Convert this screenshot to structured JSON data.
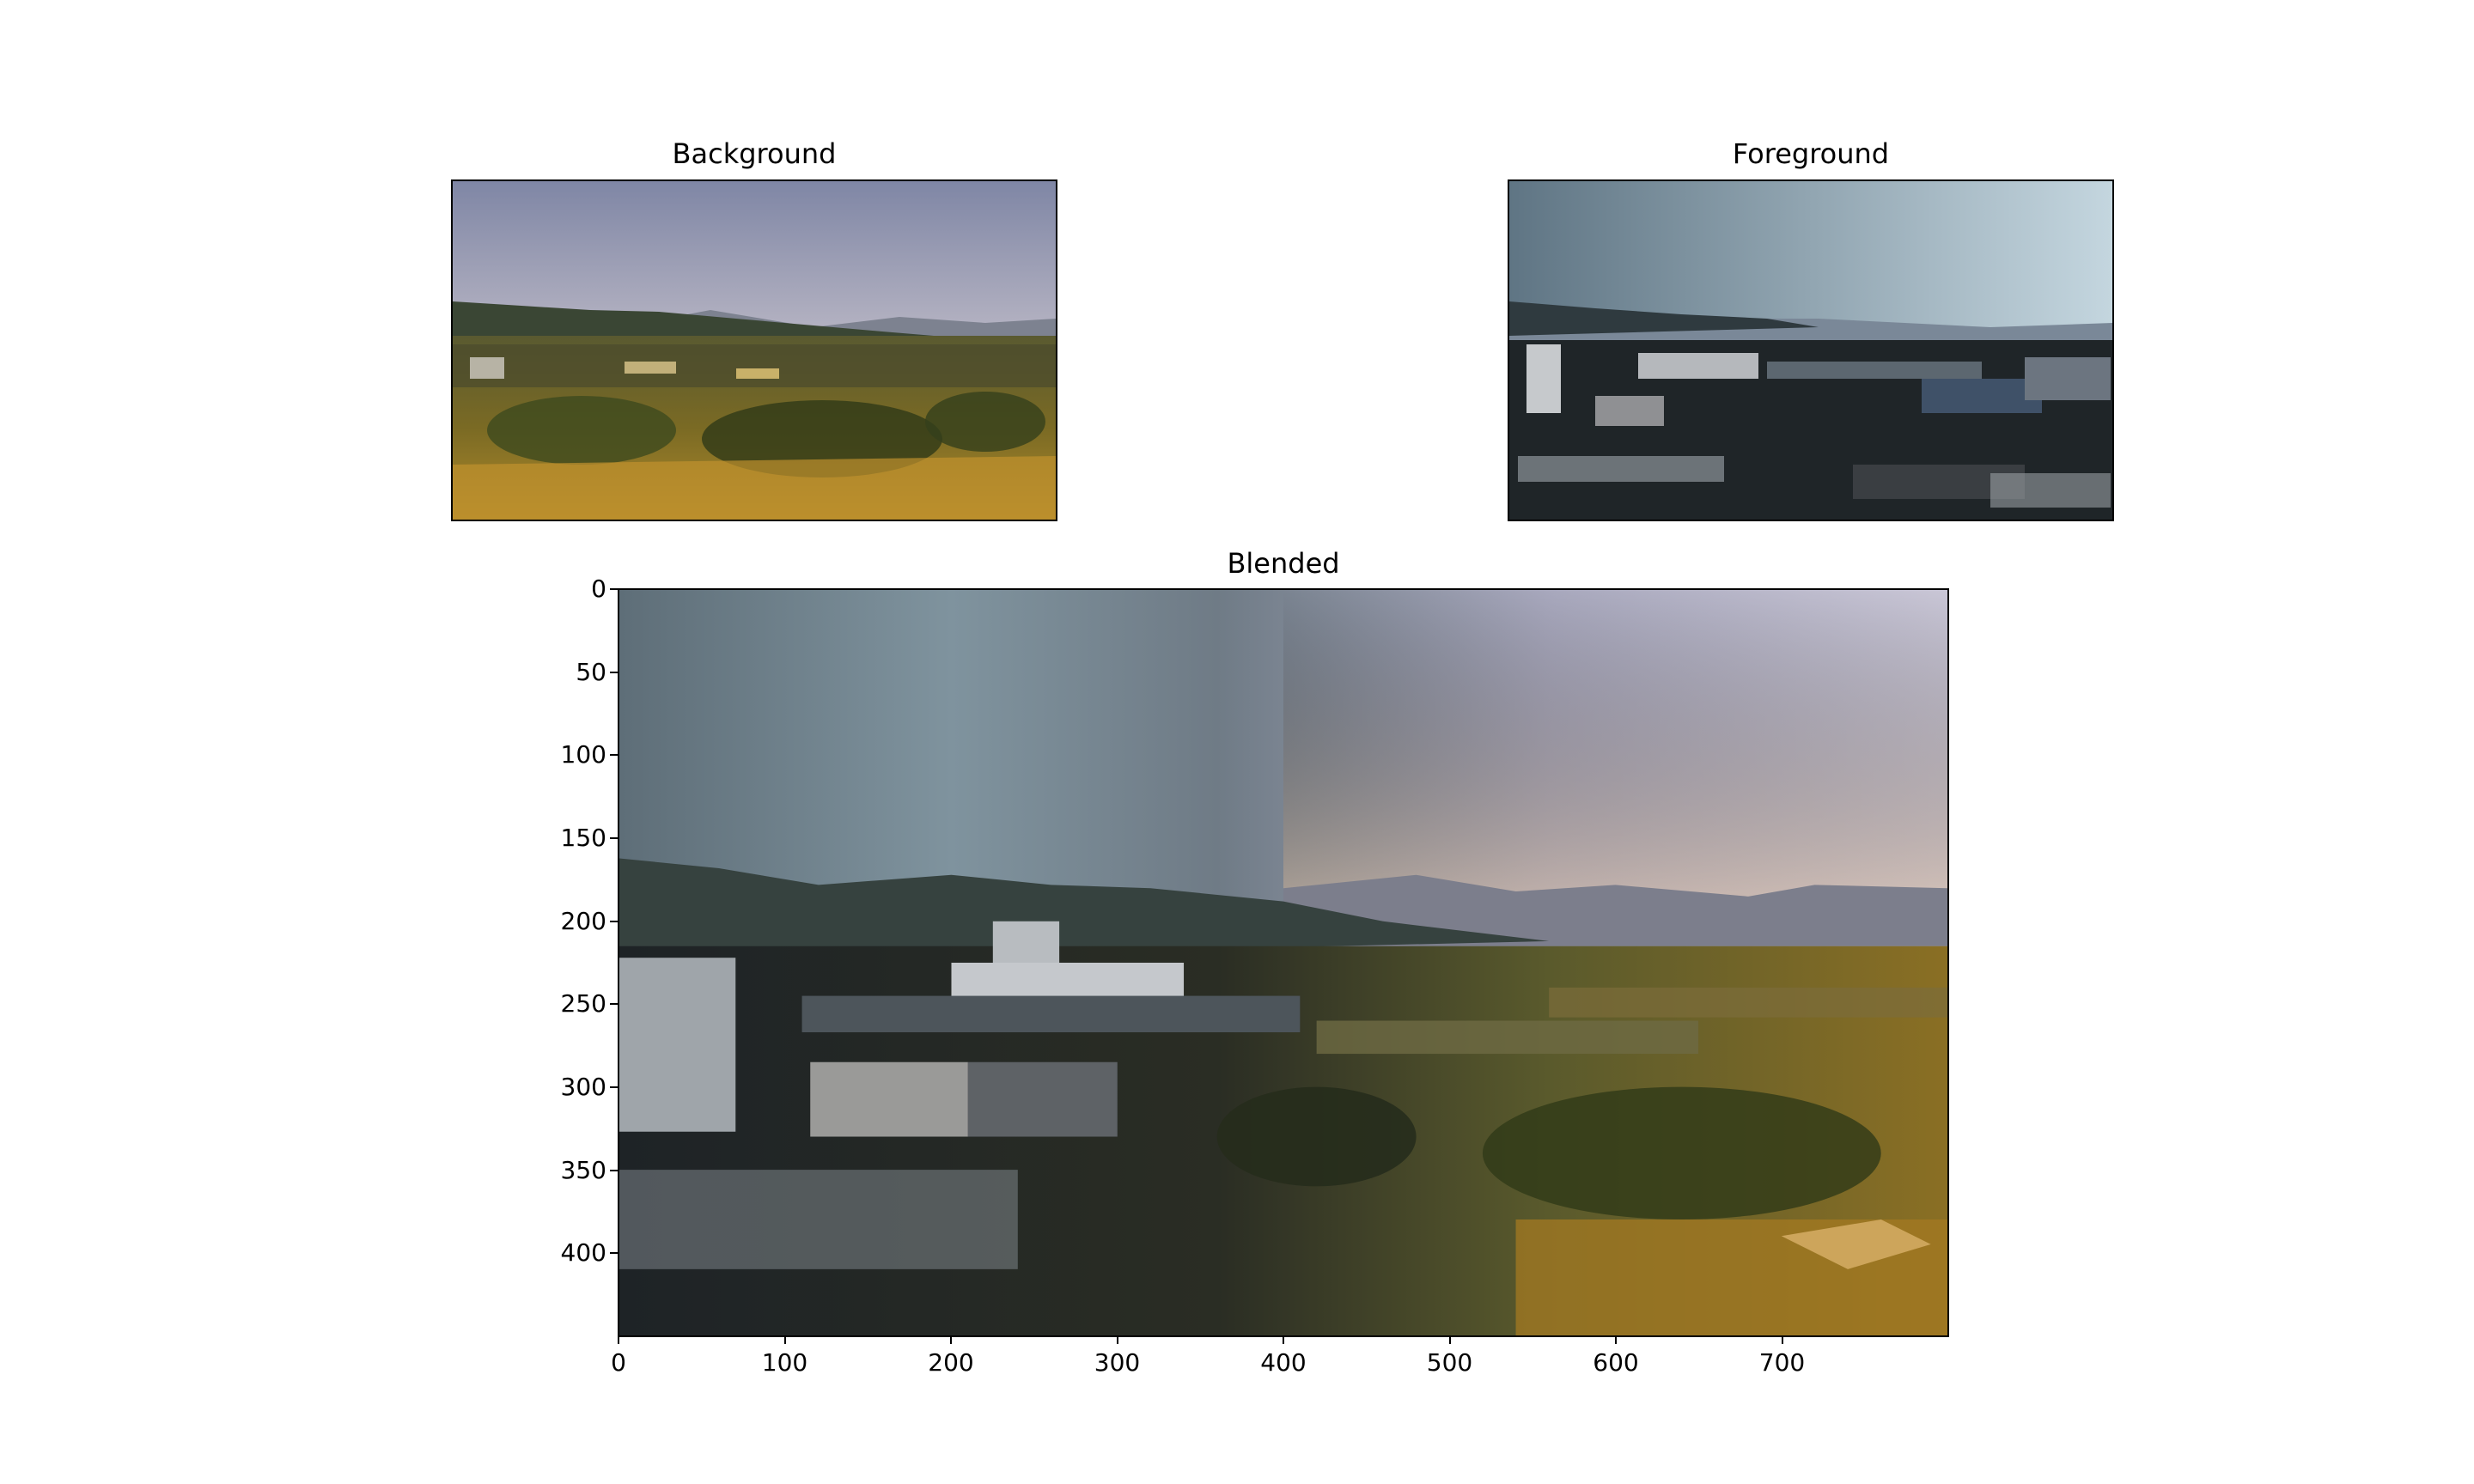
{
  "figure": {
    "panels": [
      {
        "id": "background",
        "title": "Background"
      },
      {
        "id": "foreground",
        "title": "Foreground"
      },
      {
        "id": "blended",
        "title": "Blended"
      }
    ],
    "blended_axes": {
      "x_ticks": [
        "0",
        "100",
        "200",
        "300",
        "400",
        "500",
        "600",
        "700"
      ],
      "y_ticks": [
        "0",
        "50",
        "100",
        "150",
        "200",
        "250",
        "300",
        "350",
        "400"
      ],
      "x_range": [
        0,
        800
      ],
      "y_range": [
        0,
        450
      ]
    },
    "scene_colors": {
      "warm_sky_top": "#8a8ea8",
      "warm_sky_bottom": "#d8c4b4",
      "cool_sky_top": "#5f7584",
      "cool_sky_bottom": "#b9cdd8",
      "hills": "#3b4a3a",
      "far_hills": "#6e7482",
      "warm_ground": "#9a7a22",
      "dark_ground": "#1f2326",
      "building": "#c9cdd2"
    }
  }
}
